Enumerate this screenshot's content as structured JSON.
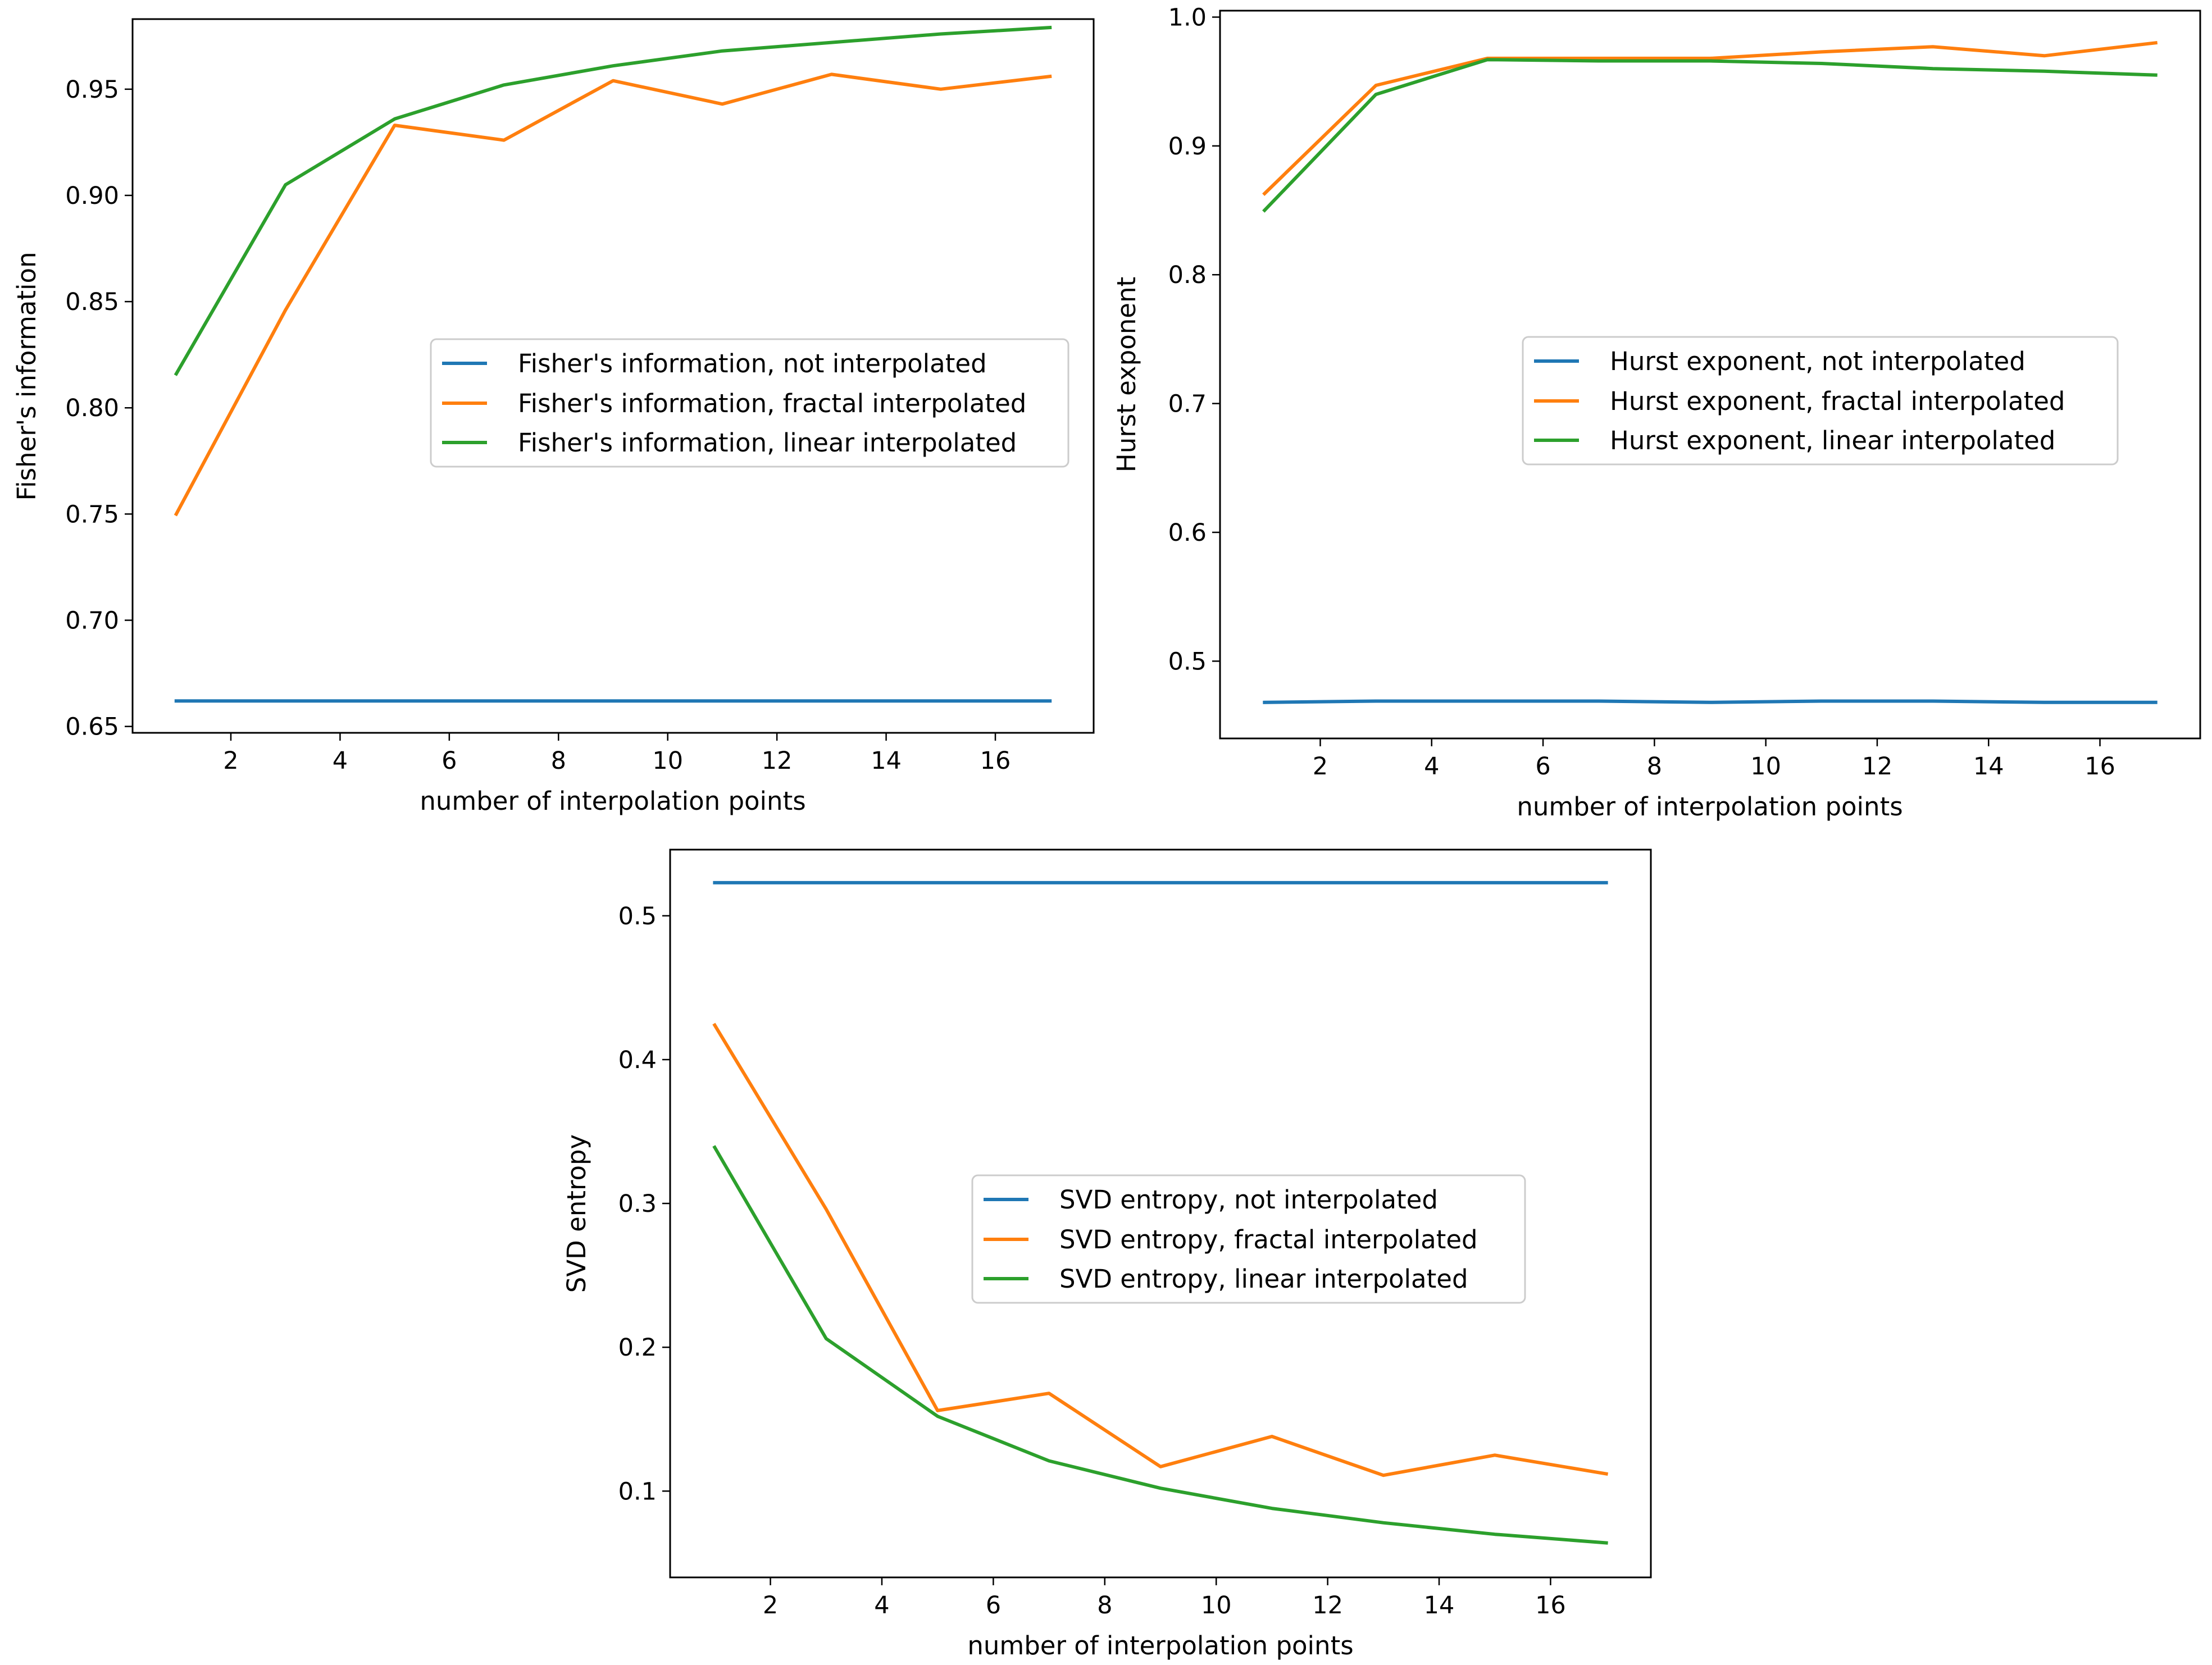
{
  "chart_data": [
    {
      "type": "line",
      "id": "fisher",
      "xlabel": "number of interpolation points",
      "ylabel": "Fisher's information",
      "xlim": [
        0.2,
        17.8
      ],
      "ylim": [
        0.647,
        0.983
      ],
      "xticks": [
        2,
        4,
        6,
        8,
        10,
        12,
        14,
        16
      ],
      "yticks": [
        0.65,
        0.7,
        0.75,
        0.8,
        0.85,
        0.9,
        0.95
      ],
      "ytick_labels": [
        "0.65",
        "0.70",
        "0.75",
        "0.80",
        "0.85",
        "0.90",
        "0.95"
      ],
      "legend_position": "center-right",
      "x": [
        1,
        3,
        5,
        7,
        9,
        11,
        13,
        15,
        17
      ],
      "series": [
        {
          "name": "Fisher's information, not interpolated",
          "color": "#1f77b4",
          "values": [
            0.662,
            0.662,
            0.662,
            0.662,
            0.662,
            0.662,
            0.662,
            0.662,
            0.662
          ]
        },
        {
          "name": "Fisher's information, fractal interpolated",
          "color": "#ff7f0e",
          "values": [
            0.75,
            0.846,
            0.933,
            0.926,
            0.954,
            0.943,
            0.957,
            0.95,
            0.956
          ]
        },
        {
          "name": "Fisher's information, linear interpolated",
          "color": "#2ca02c",
          "values": [
            0.816,
            0.905,
            0.936,
            0.952,
            0.961,
            0.968,
            0.972,
            0.976,
            0.979
          ]
        }
      ]
    },
    {
      "type": "line",
      "id": "hurst",
      "xlabel": "number of interpolation points",
      "ylabel": "Hurst exponent",
      "xlim": [
        0.2,
        17.8
      ],
      "ylim": [
        0.44,
        1.005
      ],
      "xticks": [
        2,
        4,
        6,
        8,
        10,
        12,
        14,
        16
      ],
      "yticks": [
        0.5,
        0.6,
        0.7,
        0.8,
        0.9,
        1.0
      ],
      "ytick_labels": [
        "0.5",
        "0.6",
        "0.7",
        "0.8",
        "0.9",
        "1.0"
      ],
      "legend_position": "center-right",
      "x": [
        1,
        3,
        5,
        7,
        9,
        11,
        13,
        15,
        17
      ],
      "series": [
        {
          "name": "Hurst exponent, not interpolated",
          "color": "#1f77b4",
          "values": [
            0.468,
            0.469,
            0.469,
            0.469,
            0.468,
            0.469,
            0.469,
            0.468,
            0.468
          ]
        },
        {
          "name": "Hurst exponent, fractal interpolated",
          "color": "#ff7f0e",
          "values": [
            0.863,
            0.947,
            0.968,
            0.968,
            0.968,
            0.973,
            0.977,
            0.97,
            0.98
          ]
        },
        {
          "name": "Hurst exponent, linear interpolated",
          "color": "#2ca02c",
          "values": [
            0.85,
            0.94,
            0.967,
            0.966,
            0.966,
            0.964,
            0.96,
            0.958,
            0.955
          ]
        }
      ]
    },
    {
      "type": "line",
      "id": "svd",
      "xlabel": "number of interpolation points",
      "ylabel": "SVD entropy",
      "xlim": [
        0.2,
        17.8
      ],
      "ylim": [
        0.04,
        0.546
      ],
      "xticks": [
        2,
        4,
        6,
        8,
        10,
        12,
        14,
        16
      ],
      "yticks": [
        0.1,
        0.2,
        0.3,
        0.4,
        0.5
      ],
      "ytick_labels": [
        "0.1",
        "0.2",
        "0.3",
        "0.4",
        "0.5"
      ],
      "legend_position": "center",
      "x": [
        1,
        3,
        5,
        7,
        9,
        11,
        13,
        15,
        17
      ],
      "series": [
        {
          "name": "SVD entropy, not interpolated",
          "color": "#1f77b4",
          "values": [
            0.523,
            0.523,
            0.523,
            0.523,
            0.523,
            0.523,
            0.523,
            0.523,
            0.523
          ]
        },
        {
          "name": "SVD entropy, fractal interpolated",
          "color": "#ff7f0e",
          "values": [
            0.424,
            0.296,
            0.156,
            0.168,
            0.117,
            0.138,
            0.111,
            0.125,
            0.112
          ]
        },
        {
          "name": "SVD entropy, linear interpolated",
          "color": "#2ca02c",
          "values": [
            0.339,
            0.206,
            0.152,
            0.121,
            0.102,
            0.088,
            0.078,
            0.07,
            0.064
          ]
        }
      ]
    }
  ]
}
